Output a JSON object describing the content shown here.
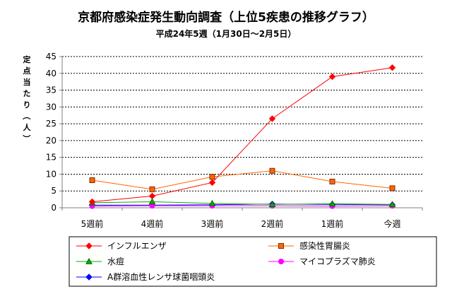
{
  "chart_data": {
    "type": "line",
    "title": "京都府感染症発生動向調査（上位5疾患の推移グラフ）",
    "subtitle": "平成24年5週（1月30日～2月5日）",
    "ylabel": "定点当たり（人）",
    "xlabel": "",
    "categories": [
      "5週前",
      "4週前",
      "3週前",
      "2週前",
      "1週前",
      "今週"
    ],
    "ylim": [
      0,
      45
    ],
    "yticks": [
      0,
      5,
      10,
      15,
      20,
      25,
      30,
      35,
      40,
      45
    ],
    "grid": true,
    "legend_position": "bottom",
    "series": [
      {
        "name": "インフルエンザ",
        "color": "#ff0000",
        "marker": "diamond",
        "values": [
          1.8,
          3.5,
          7.5,
          26.5,
          39.0,
          41.7
        ]
      },
      {
        "name": "感染性胃腸炎",
        "color": "#ff6600",
        "marker": "square",
        "values": [
          8.2,
          5.5,
          9.2,
          11.0,
          7.8,
          5.8
        ]
      },
      {
        "name": "水痘",
        "color": "#00b000",
        "marker": "triangle",
        "values": [
          1.5,
          1.8,
          1.3,
          1.0,
          1.2,
          1.0
        ]
      },
      {
        "name": "マイコプラズマ肺炎",
        "color": "#ff00ff",
        "marker": "circle",
        "values": [
          0.5,
          0.6,
          0.6,
          0.6,
          0.5,
          0.6
        ]
      },
      {
        "name": "A群溶血性レンサ球菌咽頭炎",
        "color": "#0000ff",
        "marker": "diamond",
        "values": [
          0.8,
          0.8,
          0.9,
          1.1,
          1.0,
          0.9
        ]
      }
    ]
  }
}
